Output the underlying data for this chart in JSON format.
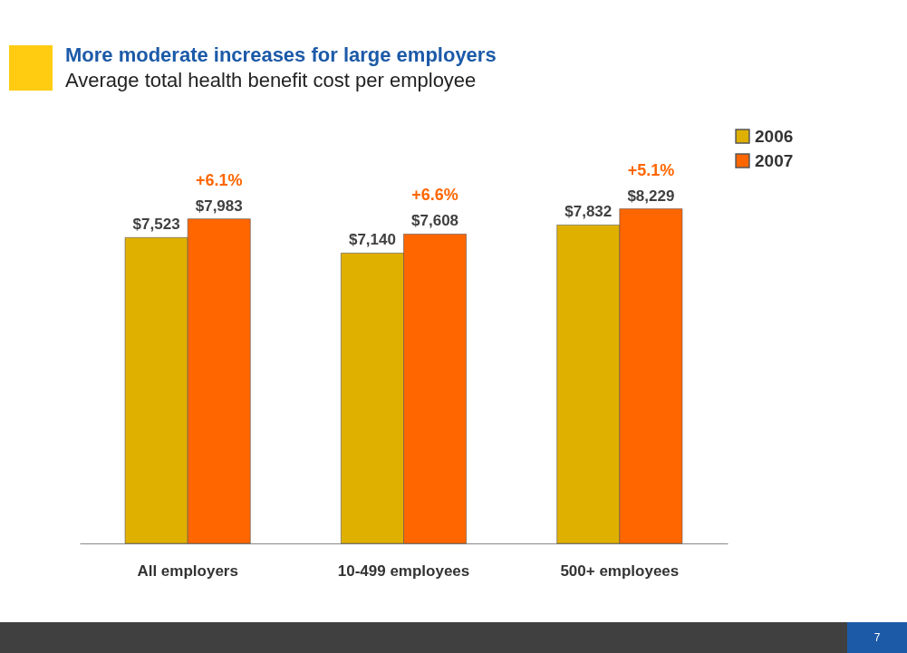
{
  "chart_data": {
    "type": "bar",
    "title": "More moderate increases for large employers",
    "subtitle": "Average total health benefit cost per employee",
    "categories": [
      "All employers",
      "10-499 employees",
      "500+ employees"
    ],
    "series": [
      {
        "name": "2006",
        "color": "#e0b000",
        "values": [
          7523,
          7140,
          7832
        ],
        "value_labels": [
          "$7,523",
          "$7,140",
          "$7,832"
        ]
      },
      {
        "name": "2007",
        "color": "#ff6600",
        "values": [
          7983,
          7608,
          8229
        ],
        "value_labels": [
          "$7,983",
          "$7,608",
          "$8,229"
        ]
      }
    ],
    "annotations": [
      {
        "text": "+6.1%",
        "x": "All employers",
        "y": 7983
      },
      {
        "text": "+6.6%",
        "x": "10-499 employees",
        "y": 7608
      },
      {
        "text": "+5.1%",
        "x": "500+ employees",
        "y": 8229
      },
      "7"
    ],
    "legend": "top right",
    "grid": false
  }
}
